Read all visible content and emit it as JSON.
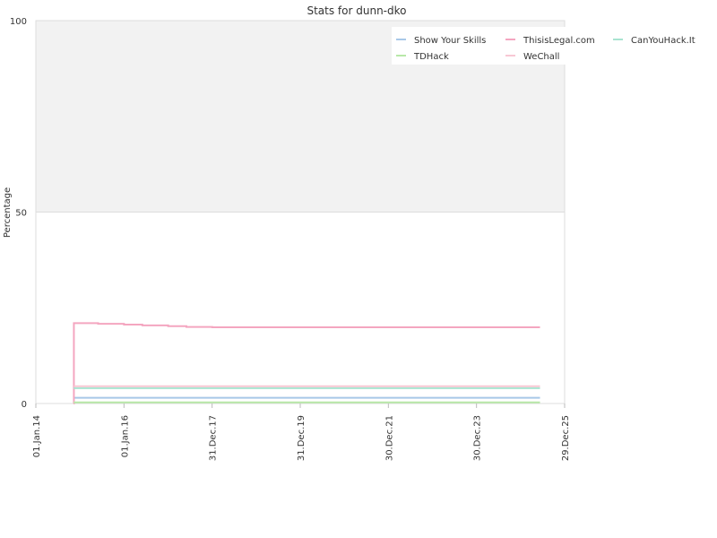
{
  "chart_data": {
    "type": "line",
    "title": "Stats for dunn-dko",
    "xlabel": "",
    "ylabel": "Percentage",
    "ylim": [
      0,
      100
    ],
    "yticks": [
      0,
      50,
      100
    ],
    "xlim": [
      "2014-01-01",
      "2025-12-29"
    ],
    "xticks": [
      {
        "label": "01.Jan.14",
        "date": "2014-01-01"
      },
      {
        "label": "01.Jan.16",
        "date": "2016-01-01"
      },
      {
        "label": "31.Dec.17",
        "date": "2017-12-31"
      },
      {
        "label": "31.Dec.19",
        "date": "2019-12-31"
      },
      {
        "label": "30.Dec.21",
        "date": "2021-12-30"
      },
      {
        "label": "30.Dec.23",
        "date": "2023-12-30"
      },
      {
        "label": "29.Dec.25",
        "date": "2025-12-29"
      }
    ],
    "grid": true,
    "legend_position": "top-right",
    "series": [
      {
        "name": "Show Your Skills",
        "color": "#a8c8e8",
        "x": [
          "2014-11-10",
          "2025-06-08"
        ],
        "y": [
          1.5,
          1.5
        ]
      },
      {
        "name": "ThisisLegal.com",
        "color": "#f4a6c0",
        "x": [
          "2014-11-10",
          "2014-11-12",
          "2015-01-01",
          "2015-06-01",
          "2016-01-01",
          "2016-06-01",
          "2017-01-01",
          "2017-06-01",
          "2018-01-01",
          "2025-06-08"
        ],
        "y": [
          0,
          21,
          21,
          20.8,
          20.6,
          20.4,
          20.2,
          20,
          19.9,
          19.9
        ]
      },
      {
        "name": "CanYouHack.It",
        "color": "#a8e4d0",
        "x": [
          "2014-11-10",
          "2025-06-08"
        ],
        "y": [
          4,
          4
        ]
      },
      {
        "name": "TDHack",
        "color": "#b8e8a8",
        "x": [
          "2014-11-10",
          "2025-06-08"
        ],
        "y": [
          0.3,
          0.3
        ]
      },
      {
        "name": "WeChall",
        "color": "#f8c8d4",
        "x": [
          "2014-11-12",
          "2025-06-08"
        ],
        "y": [
          4.5,
          4.5
        ]
      }
    ]
  }
}
